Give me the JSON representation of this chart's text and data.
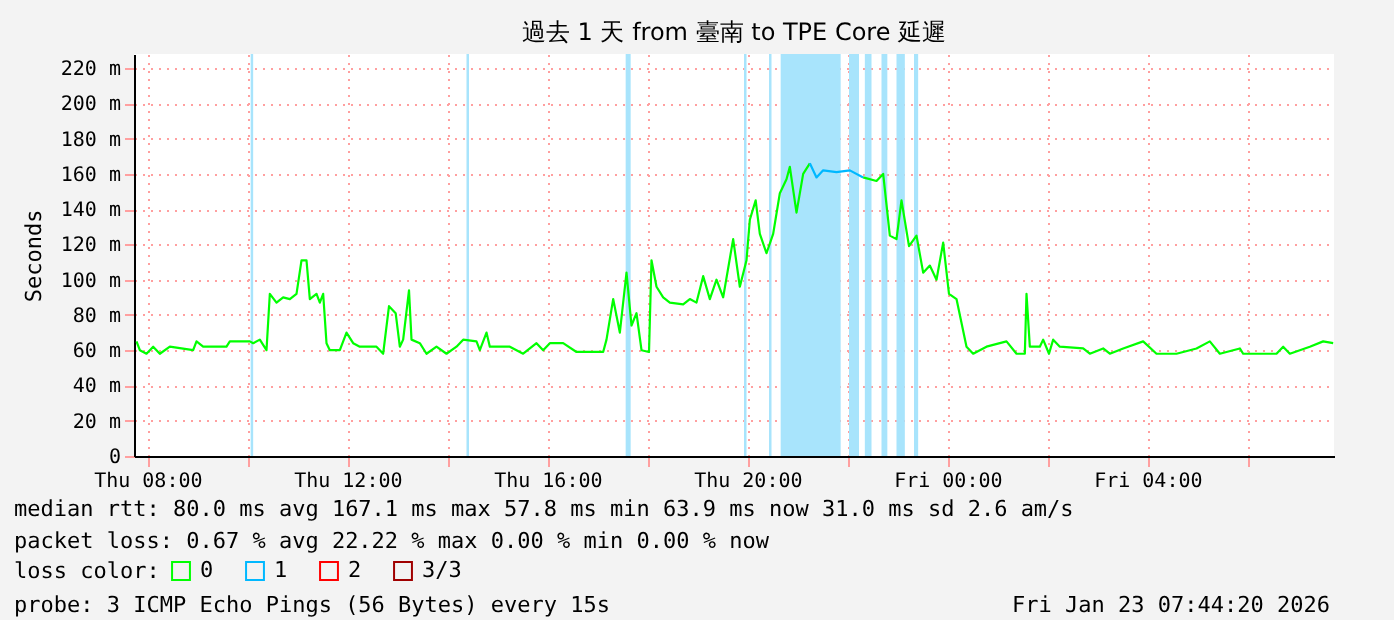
{
  "chart_data": {
    "type": "line",
    "title": "過去 1 天 from 臺南 to TPE Core 延遲",
    "ylabel": "Seconds",
    "legend_title": "loss color:",
    "legend": "bottom left",
    "x": [
      "2026-01-22T07:47",
      "2026-01-22T07:51",
      "2026-01-22T07:59",
      "2026-01-22T08:07",
      "2026-01-22T08:15",
      "2026-01-22T08:27",
      "2026-01-22T08:55",
      "2026-01-22T08:59",
      "2026-01-22T09:07",
      "2026-01-22T09:35",
      "2026-01-22T09:39",
      "2026-01-22T10:03",
      "2026-01-22T10:07",
      "2026-01-22T10:15",
      "2026-01-22T10:23",
      "2026-01-22T10:27",
      "2026-01-22T10:35",
      "2026-01-22T10:43",
      "2026-01-22T10:51",
      "2026-01-22T10:59",
      "2026-01-22T11:05",
      "2026-01-22T11:11",
      "2026-01-22T11:15",
      "2026-01-22T11:23",
      "2026-01-22T11:27",
      "2026-01-22T11:31",
      "2026-01-22T11:35",
      "2026-01-22T11:39",
      "2026-01-22T11:51",
      "2026-01-22T11:59",
      "2026-01-22T12:07",
      "2026-01-22T12:15",
      "2026-01-22T12:35",
      "2026-01-22T12:43",
      "2026-01-22T12:50",
      "2026-01-22T12:58",
      "2026-01-22T13:03",
      "2026-01-22T13:07",
      "2026-01-22T13:14",
      "2026-01-22T13:17",
      "2026-01-22T13:27",
      "2026-01-22T13:35",
      "2026-01-22T13:47",
      "2026-01-22T13:59",
      "2026-01-22T14:11",
      "2026-01-22T14:19",
      "2026-01-22T14:35",
      "2026-01-22T14:39",
      "2026-01-22T14:47",
      "2026-01-22T14:51",
      "2026-01-22T15:15",
      "2026-01-22T15:31",
      "2026-01-22T15:47",
      "2026-01-22T15:55",
      "2026-01-22T16:03",
      "2026-01-22T16:19",
      "2026-01-22T16:35",
      "2026-01-22T17:07",
      "2026-01-22T17:11",
      "2026-01-22T17:19",
      "2026-01-22T17:27",
      "2026-01-22T17:35",
      "2026-01-22T17:41",
      "2026-01-22T17:47",
      "2026-01-22T17:53",
      "2026-01-22T18:02",
      "2026-01-22T18:05",
      "2026-01-22T18:11",
      "2026-01-22T18:19",
      "2026-01-22T18:27",
      "2026-01-22T18:43",
      "2026-01-22T18:51",
      "2026-01-22T18:59",
      "2026-01-22T19:07",
      "2026-01-22T19:15",
      "2026-01-22T19:23",
      "2026-01-22T19:31",
      "2026-01-22T19:43",
      "2026-01-22T19:51",
      "2026-01-22T19:59",
      "2026-01-22T20:03",
      "2026-01-22T20:10",
      "2026-01-22T20:15",
      "2026-01-22T20:23",
      "2026-01-22T20:31",
      "2026-01-22T20:39",
      "2026-01-22T20:47",
      "2026-01-22T20:51",
      "2026-01-22T20:59",
      "2026-01-22T21:07",
      "2026-01-22T21:15",
      "2026-01-22T21:23",
      "2026-01-22T21:31",
      "2026-01-22T21:47",
      "2026-01-22T22:03",
      "2026-01-22T22:19",
      "2026-01-22T22:35",
      "2026-01-22T22:43",
      "2026-01-22T22:51",
      "2026-01-22T22:59",
      "2026-01-22T23:05",
      "2026-01-22T23:14",
      "2026-01-22T23:23",
      "2026-01-22T23:31",
      "2026-01-22T23:39",
      "2026-01-22T23:47",
      "2026-01-22T23:55",
      "2026-01-23T00:02",
      "2026-01-23T00:11",
      "2026-01-23T00:23",
      "2026-01-23T00:31",
      "2026-01-23T00:47",
      "2026-01-23T01:11",
      "2026-01-23T01:23",
      "2026-01-23T01:33",
      "2026-01-23T01:35",
      "2026-01-23T01:39",
      "2026-01-23T01:51",
      "2026-01-23T01:55",
      "2026-01-23T02:02",
      "2026-01-23T02:07",
      "2026-01-23T02:15",
      "2026-01-23T02:43",
      "2026-01-23T02:51",
      "2026-01-23T03:07",
      "2026-01-23T03:15",
      "2026-01-23T03:31",
      "2026-01-23T03:55",
      "2026-01-23T04:11",
      "2026-01-23T04:35",
      "2026-01-23T04:59",
      "2026-01-23T05:15",
      "2026-01-23T05:27",
      "2026-01-23T05:51",
      "2026-01-23T05:55",
      "2026-01-23T06:35",
      "2026-01-23T06:43",
      "2026-01-23T06:51",
      "2026-01-23T07:15",
      "2026-01-23T07:31",
      "2026-01-23T07:43"
    ],
    "series": [
      {
        "name": "0",
        "color": "#00ff00",
        "values": [
          65,
          60,
          58,
          62,
          58,
          62,
          60,
          65,
          62,
          62,
          65,
          65,
          64,
          66,
          60,
          92,
          87,
          90,
          89,
          92,
          111,
          111,
          89,
          92,
          87,
          92,
          64,
          60,
          60,
          70,
          64,
          62,
          62,
          58,
          85,
          81,
          62,
          66,
          94,
          66,
          64,
          58,
          62,
          58,
          62,
          66,
          65,
          60,
          70,
          62,
          62,
          58,
          64,
          60,
          64,
          64,
          59,
          59,
          66,
          89,
          70,
          104,
          74,
          81,
          60,
          59,
          111,
          96,
          90,
          87,
          86,
          89,
          87,
          102,
          89,
          100,
          90,
          123,
          96,
          111,
          134,
          145,
          126,
          115,
          126,
          149,
          157,
          164,
          138,
          160,
          166,
          null,
          null,
          null,
          null,
          158,
          156,
          160,
          125,
          123,
          145,
          119,
          125,
          104,
          108,
          100,
          121,
          92,
          89,
          62,
          58,
          62,
          65,
          58,
          58,
          92,
          62,
          62,
          66,
          58,
          66,
          62,
          61,
          58,
          61,
          58,
          61,
          65,
          58,
          58,
          61,
          65,
          58,
          61,
          58,
          58,
          62,
          58,
          62,
          65,
          64
        ]
      },
      {
        "name": "1",
        "color": "#00b8ff",
        "x": [
          "2026-01-22T21:15",
          "2026-01-22T21:23",
          "2026-01-22T21:31",
          "2026-01-22T21:47",
          "2026-01-22T22:03",
          "2026-01-22T22:19"
        ],
        "values": [
          166,
          158,
          162,
          161,
          162,
          158
        ]
      },
      {
        "name": "2",
        "color": "#ff0000",
        "values": [
          null,
          null,
          null,
          null,
          null,
          null,
          null,
          null,
          null,
          null,
          null,
          null,
          null,
          null,
          null,
          null,
          null,
          null,
          null,
          null,
          null,
          null,
          null,
          null,
          null,
          null,
          null,
          null,
          null,
          null,
          null,
          null,
          null,
          null,
          null,
          null,
          null,
          null,
          null,
          null,
          null,
          null,
          null,
          null,
          null,
          null,
          null,
          null,
          null,
          null,
          null,
          null,
          null,
          null,
          null,
          null,
          null,
          null,
          null,
          null,
          null,
          null,
          null,
          null,
          null,
          null,
          null,
          null,
          null,
          null,
          null,
          null,
          null,
          null,
          null,
          null,
          null,
          null,
          null,
          null,
          null,
          null,
          null,
          null,
          null,
          null,
          null,
          null,
          null,
          null,
          null,
          null,
          null,
          null,
          null,
          null,
          null,
          null,
          null,
          null,
          null,
          null,
          null,
          null,
          null,
          null,
          null,
          null,
          null,
          null,
          null,
          null,
          null,
          null,
          null,
          null,
          null,
          null,
          null,
          null,
          null,
          null,
          null,
          null,
          null,
          null,
          null,
          null,
          null,
          null,
          null,
          null,
          null,
          null,
          null,
          null,
          null,
          null,
          null,
          null,
          null
        ]
      },
      {
        "name": "3/3",
        "color": "#a00000",
        "values": [
          null,
          null,
          null,
          null,
          null,
          null,
          null,
          null,
          null,
          null,
          null,
          null,
          null,
          null,
          null,
          null,
          null,
          null,
          null,
          null,
          null,
          null,
          null,
          null,
          null,
          null,
          null,
          null,
          null,
          null,
          null,
          null,
          null,
          null,
          null,
          null,
          null,
          null,
          null,
          null,
          null,
          null,
          null,
          null,
          null,
          null,
          null,
          null,
          null,
          null,
          null,
          null,
          null,
          null,
          null,
          null,
          null,
          null,
          null,
          null,
          null,
          null,
          null,
          null,
          null,
          null,
          null,
          null,
          null,
          null,
          null,
          null,
          null,
          null,
          null,
          null,
          null,
          null,
          null,
          null,
          null,
          null,
          null,
          null,
          null,
          null,
          null,
          null,
          null,
          null,
          null,
          null,
          null,
          null,
          null,
          null,
          null,
          null,
          null,
          null,
          null,
          null,
          null,
          null,
          null,
          null,
          null,
          null,
          null,
          null,
          null,
          null,
          null,
          null,
          null,
          null,
          null,
          null,
          null,
          null,
          null,
          null,
          null,
          null,
          null,
          null,
          null,
          null,
          null,
          null,
          null,
          null,
          null,
          null,
          null,
          null,
          null,
          null,
          null,
          null,
          null
        ]
      }
    ],
    "xlim": [
      "2026-01-22T07:44",
      "2026-01-23T07:44"
    ],
    "xticks": [
      {
        "value": "2026-01-22T08:00",
        "label": "Thu 08:00"
      },
      {
        "value": "2026-01-22T10:00",
        "label": null
      },
      {
        "value": "2026-01-22T12:00",
        "label": "Thu 12:00"
      },
      {
        "value": "2026-01-22T14:00",
        "label": null
      },
      {
        "value": "2026-01-22T16:00",
        "label": "Thu 16:00"
      },
      {
        "value": "2026-01-22T18:00",
        "label": null
      },
      {
        "value": "2026-01-22T20:00",
        "label": "Thu 20:00"
      },
      {
        "value": "2026-01-22T22:00",
        "label": null
      },
      {
        "value": "2026-01-23T00:00",
        "label": "Fri 00:00"
      },
      {
        "value": "2026-01-23T02:00",
        "label": null
      },
      {
        "value": "2026-01-23T04:00",
        "label": "Fri 04:00"
      },
      {
        "value": "2026-01-23T06:00",
        "label": null
      }
    ],
    "ylim": [
      0,
      228
    ],
    "yticks": [
      0,
      {
        "value": 20,
        "label": "20 m"
      },
      {
        "value": 40,
        "label": "40 m"
      },
      {
        "value": 60,
        "label": "60 m"
      },
      {
        "value": 80,
        "label": "80 m"
      },
      {
        "value": 100,
        "label": "100 m"
      },
      {
        "value": 120,
        "label": "120 m"
      },
      {
        "value": 140,
        "label": "140 m"
      },
      {
        "value": 160,
        "label": "160 m"
      },
      {
        "value": 180,
        "label": "180 m"
      },
      {
        "value": 200,
        "label": "200 m"
      },
      {
        "value": 220,
        "label": "220 m"
      }
    ],
    "grid": true,
    "marker": "none",
    "line_style": "solid",
    "bands": [
      {
        "axis": "x",
        "from": "2026-01-22T10:04",
        "to": "2026-01-22T10:07",
        "color": "#a8e4fc"
      },
      {
        "axis": "x",
        "from": "2026-01-22T14:23",
        "to": "2026-01-22T14:26",
        "color": "#a8e4fc"
      },
      {
        "axis": "x",
        "from": "2026-01-22T17:34",
        "to": "2026-01-22T17:40",
        "color": "#a8e4fc"
      },
      {
        "axis": "x",
        "from": "2026-01-22T19:56",
        "to": "2026-01-22T19:59",
        "color": "#a8e4fc"
      },
      {
        "axis": "x",
        "from": "2026-01-22T20:26",
        "to": "2026-01-22T20:29",
        "color": "#a8e4fc"
      },
      {
        "axis": "x",
        "from": "2026-01-22T20:40",
        "to": "2026-01-22T21:52",
        "color": "#a8e4fc"
      },
      {
        "axis": "x",
        "from": "2026-01-22T22:02",
        "to": "2026-01-22T22:14",
        "color": "#a8e4fc"
      },
      {
        "axis": "x",
        "from": "2026-01-22T22:21",
        "to": "2026-01-22T22:29",
        "color": "#a8e4fc"
      },
      {
        "axis": "x",
        "from": "2026-01-22T22:41",
        "to": "2026-01-22T22:48",
        "color": "#a8e4fc"
      },
      {
        "axis": "x",
        "from": "2026-01-22T22:59",
        "to": "2026-01-22T23:09",
        "color": "#a8e4fc"
      },
      {
        "axis": "x",
        "from": "2026-01-22T23:20",
        "to": "2026-01-22T23:25",
        "color": "#a8e4fc"
      }
    ],
    "annotations": [
      "median rtt:  80.0 ms avg  167.1 ms max  57.8 ms min  63.9 ms now  31.0 ms sd  2.6   am/s",
      "packet loss: 0.67 % avg  22.22 % max  0.00 % min  0.00 % now",
      "probe:        3 ICMP Echo Pings (56 Bytes) every 15s",
      "Fri Jan 23 07:44:20 2026"
    ]
  }
}
